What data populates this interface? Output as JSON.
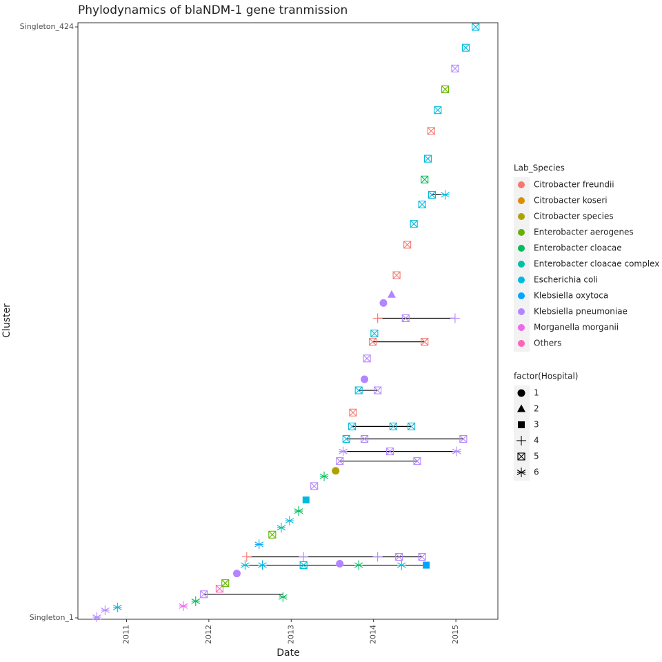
{
  "chart_data": {
    "type": "timeline",
    "title": "Phylodynamics of blaNDM-1 gene tranmission",
    "x_label": "Date",
    "y_label": "Cluster",
    "xlim": [
      2010.41,
      2015.51
    ],
    "xticks": [
      2011,
      2012,
      2013,
      2014,
      2015
    ],
    "ylim": [
      0,
      430
    ],
    "yticks": [
      {
        "value": 1,
        "label": "Singleton_1"
      },
      {
        "value": 427,
        "label": "Singleton_424"
      }
    ],
    "species_title": "Lab_Species",
    "species": [
      {
        "name": "Citrobacter freundii",
        "color": "#F8766D"
      },
      {
        "name": "Citrobacter koseri",
        "color": "#DB8E00"
      },
      {
        "name": "Citrobacter species",
        "color": "#AEA200"
      },
      {
        "name": "Enterobacter aerogenes",
        "color": "#64B200"
      },
      {
        "name": "Enterobacter cloacae",
        "color": "#00BD5C"
      },
      {
        "name": "Enterobacter cloacae complex",
        "color": "#00C1A7"
      },
      {
        "name": "Escherichia coli",
        "color": "#00BADE"
      },
      {
        "name": "Klebsiella oxytoca",
        "color": "#00A6FF"
      },
      {
        "name": "Klebsiella pneumoniae",
        "color": "#B385FF"
      },
      {
        "name": "Morganella morganii",
        "color": "#EF67EB"
      },
      {
        "name": "Others",
        "color": "#FF63B6"
      }
    ],
    "hospital_title": "factor(Hospital)",
    "hospitals": [
      {
        "name": "1",
        "shape": "circle"
      },
      {
        "name": "2",
        "shape": "triangle"
      },
      {
        "name": "3",
        "shape": "square"
      },
      {
        "name": "4",
        "shape": "plus"
      },
      {
        "name": "5",
        "shape": "boxx"
      },
      {
        "name": "6",
        "shape": "asterisk"
      }
    ],
    "points": {
      "x": [
        2010.64,
        2010.74,
        2010.89,
        2011.69,
        2011.84,
        2011.94,
        2012.9,
        2012.13,
        2012.2,
        2012.34,
        2012.44,
        2012.65,
        2013.15,
        2013.59,
        2013.82,
        2014.34,
        2014.64,
        2012.46,
        2013.15,
        2014.05,
        2014.31,
        2014.59,
        2012.61,
        2012.77,
        2012.88,
        2012.98,
        2013.09,
        2013.18,
        2013.28,
        2013.4,
        2013.54,
        2013.59,
        2014.53,
        2013.63,
        2014.2,
        2015.01,
        2013.67,
        2013.89,
        2015.09,
        2013.74,
        2014.24,
        2014.46,
        2013.75,
        2013.82,
        2014.05,
        2013.89,
        2013.92,
        2013.99,
        2014.62,
        2014.01,
        2014.05,
        2014.39,
        2014.99,
        2014.12,
        2014.22,
        2014.28,
        2014.41,
        2014.49,
        2014.59,
        2014.71,
        2014.87,
        2014.62,
        2014.66,
        2014.7,
        2014.78,
        2014.87,
        2014.99,
        2015.12,
        2015.24
      ],
      "y": [
        1.5,
        6.5,
        8.5,
        9.5,
        13,
        18,
        16,
        22,
        26,
        33,
        39,
        39,
        39,
        40,
        39,
        39,
        39,
        45,
        45,
        45,
        45,
        45,
        54,
        61,
        66,
        71,
        78,
        86,
        96,
        103,
        107,
        114,
        114,
        121,
        121,
        121,
        130,
        130,
        130,
        139,
        139,
        139,
        149,
        165,
        165,
        173,
        188,
        200,
        200,
        206,
        217,
        217,
        217,
        228,
        234,
        248,
        270,
        285,
        299,
        306,
        306,
        317,
        332,
        352,
        367,
        382,
        397,
        412,
        427
      ],
      "species": [
        8,
        8,
        6,
        9,
        4,
        8,
        4,
        10,
        3,
        8,
        6,
        6,
        6,
        8,
        4,
        6,
        7,
        0,
        8,
        8,
        8,
        8,
        7,
        3,
        5,
        6,
        4,
        6,
        8,
        4,
        2,
        8,
        8,
        8,
        8,
        8,
        6,
        8,
        8,
        6,
        6,
        6,
        0,
        6,
        8,
        8,
        8,
        0,
        0,
        6,
        0,
        8,
        8,
        8,
        8,
        0,
        0,
        6,
        6,
        6,
        6,
        4,
        6,
        0,
        6,
        3,
        8,
        6,
        6
      ],
      "hospital": [
        5,
        5,
        5,
        5,
        5,
        4,
        5,
        4,
        4,
        0,
        5,
        5,
        4,
        0,
        5,
        5,
        2,
        3,
        3,
        3,
        4,
        4,
        5,
        4,
        5,
        5,
        5,
        2,
        4,
        5,
        0,
        4,
        4,
        5,
        4,
        5,
        4,
        4,
        4,
        4,
        4,
        4,
        4,
        4,
        4,
        0,
        4,
        4,
        4,
        4,
        3,
        4,
        3,
        0,
        1,
        4,
        4,
        4,
        4,
        4,
        5,
        4,
        4,
        4,
        4,
        4,
        4,
        4,
        4
      ]
    },
    "links": [
      {
        "y": 18,
        "x": [
          2011.94,
          2012.9
        ]
      },
      {
        "y": 39,
        "x": [
          2012.44,
          2014.64
        ]
      },
      {
        "y": 45,
        "x": [
          2012.46,
          2014.59
        ]
      },
      {
        "y": 114,
        "x": [
          2013.59,
          2014.53
        ]
      },
      {
        "y": 121,
        "x": [
          2013.63,
          2015.01
        ]
      },
      {
        "y": 130,
        "x": [
          2013.67,
          2015.09
        ]
      },
      {
        "y": 139,
        "x": [
          2013.74,
          2014.46
        ]
      },
      {
        "y": 165,
        "x": [
          2013.82,
          2014.05
        ]
      },
      {
        "y": 200,
        "x": [
          2013.99,
          2014.62
        ]
      },
      {
        "y": 217,
        "x": [
          2014.05,
          2014.99
        ]
      },
      {
        "y": 306,
        "x": [
          2014.71,
          2014.87
        ]
      }
    ]
  }
}
